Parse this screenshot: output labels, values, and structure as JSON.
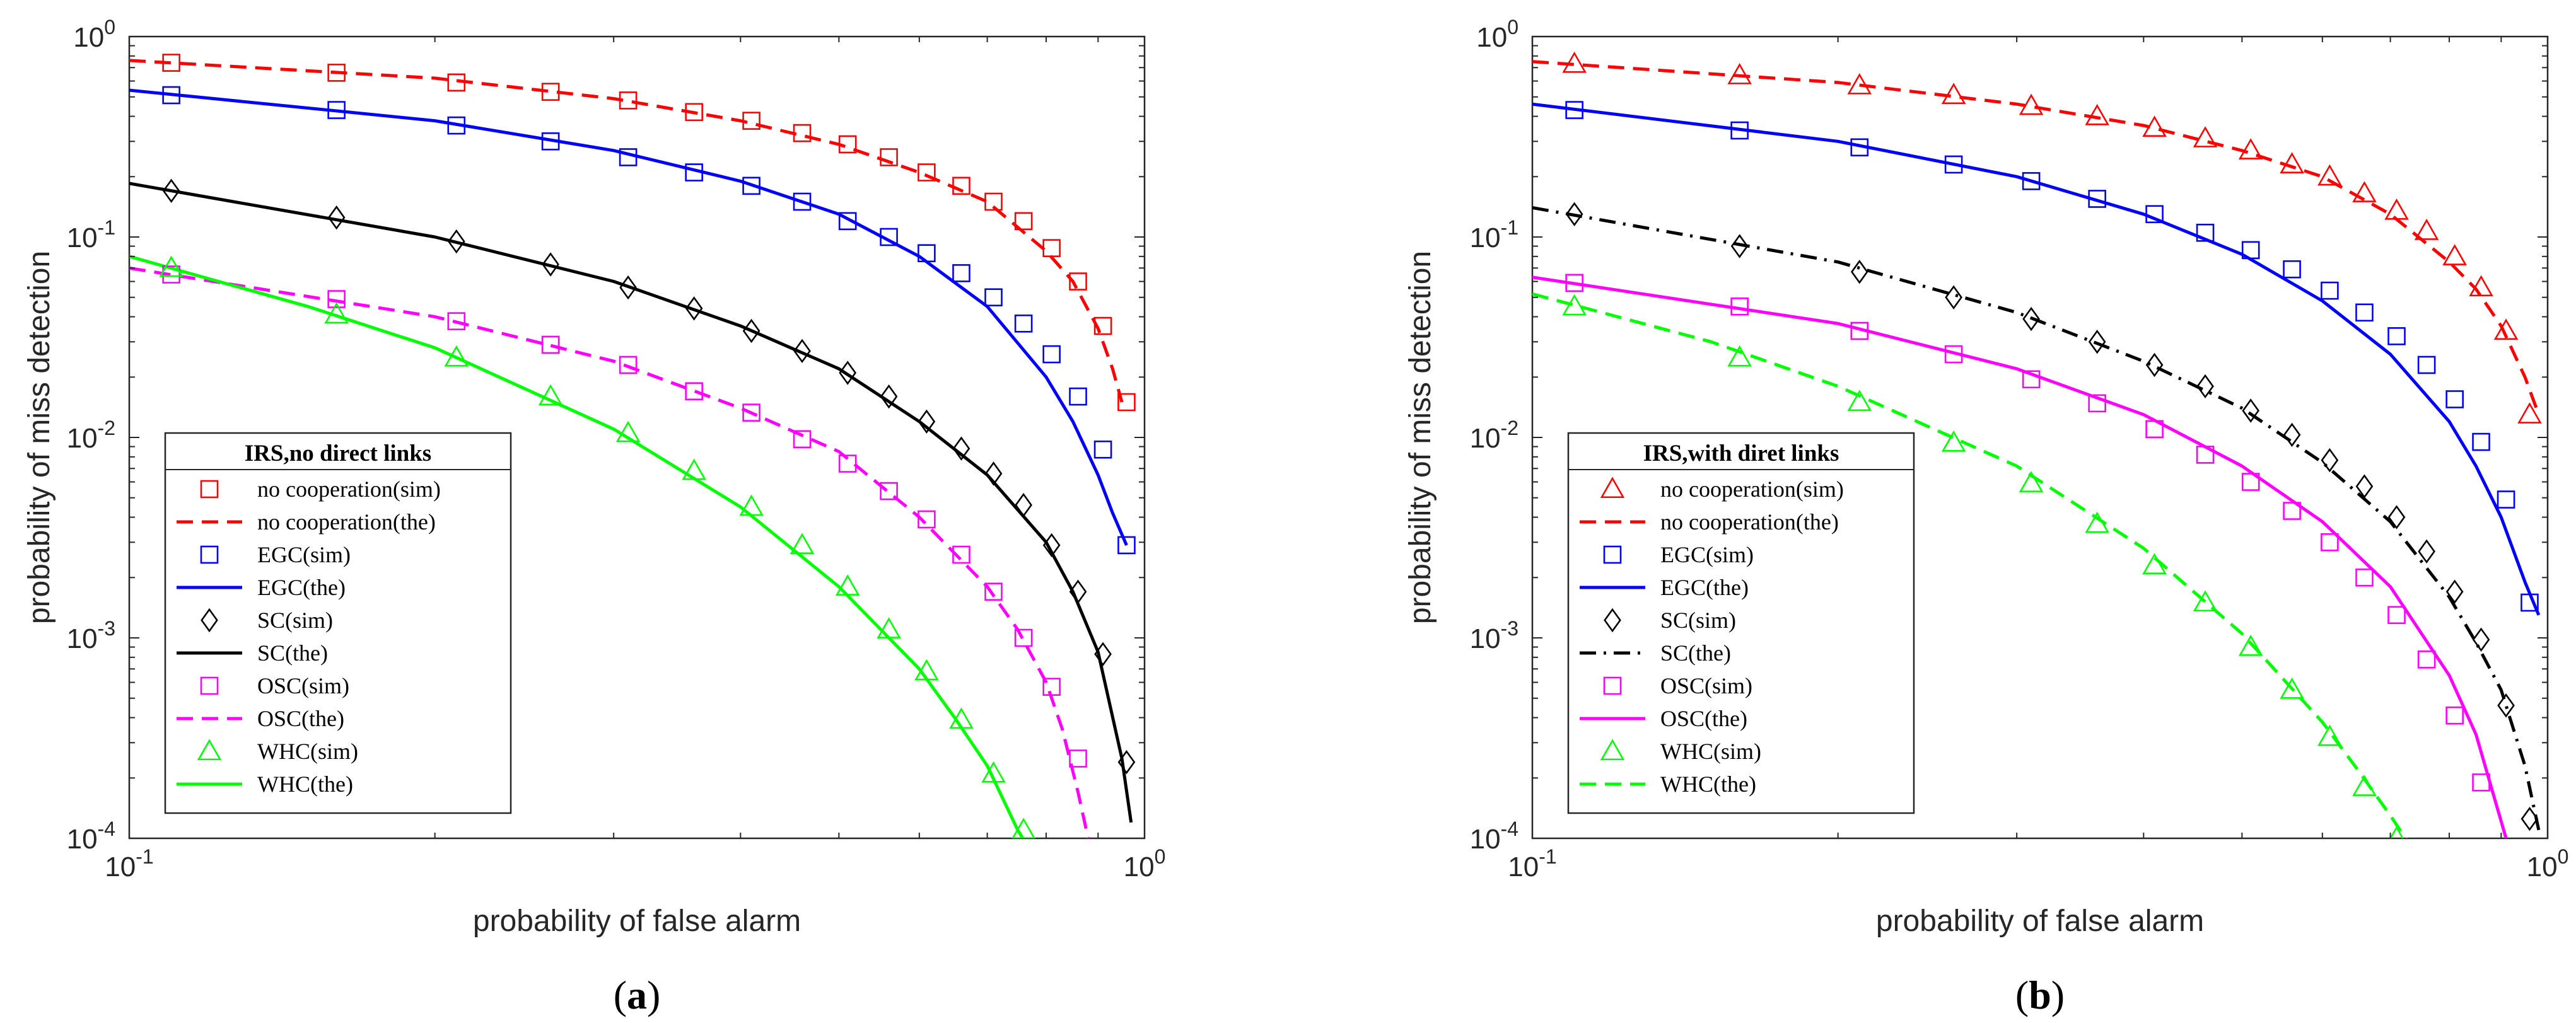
{
  "figure": {
    "panels": [
      {
        "caption_letter": "a"
      },
      {
        "caption_letter": "b"
      }
    ]
  },
  "chart_data": [
    {
      "type": "line",
      "panel": "a",
      "xlabel": "probability of false alarm",
      "ylabel": "probability of miss detection",
      "xscale": "log",
      "yscale": "log",
      "xlim": [
        0.1,
        1.0
      ],
      "ylim": [
        0.0001,
        1.0
      ],
      "xticks": [
        {
          "value": 0.1,
          "base": "10",
          "exp": "-1"
        },
        {
          "value": 1.0,
          "base": "10",
          "exp": "0"
        }
      ],
      "yticks": [
        {
          "value": 0.0001,
          "base": "10",
          "exp": "-4"
        },
        {
          "value": 0.001,
          "base": "10",
          "exp": "-3"
        },
        {
          "value": 0.01,
          "base": "10",
          "exp": "-2"
        },
        {
          "value": 0.1,
          "base": "10",
          "exp": "-1"
        },
        {
          "value": 1.0,
          "base": "10",
          "exp": "0"
        }
      ],
      "grid": false,
      "legend": {
        "title": "IRS,no direct links",
        "placement": "bottom-left",
        "entries": [
          {
            "label": "no cooperation(sim)",
            "series": 0,
            "kind": "sim"
          },
          {
            "label": "no cooperation(the)",
            "series": 0,
            "kind": "the"
          },
          {
            "label": "EGC(sim)",
            "series": 1,
            "kind": "sim"
          },
          {
            "label": "EGC(the)",
            "series": 1,
            "kind": "the"
          },
          {
            "label": "SC(sim)",
            "series": 2,
            "kind": "sim"
          },
          {
            "label": "SC(the)",
            "series": 2,
            "kind": "the"
          },
          {
            "label": "OSC(sim)",
            "series": 3,
            "kind": "sim"
          },
          {
            "label": "OSC(the)",
            "series": 3,
            "kind": "the"
          },
          {
            "label": "WHC(sim)",
            "series": 4,
            "kind": "sim"
          },
          {
            "label": "WHC(the)",
            "series": 4,
            "kind": "the"
          }
        ]
      },
      "series": [
        {
          "color": "#ff0000",
          "line": "dashed",
          "marker": "square",
          "curve_x": [
            0.1,
            0.2,
            0.3,
            0.4,
            0.5,
            0.6,
            0.7,
            0.8,
            0.85,
            0.9,
            0.93,
            0.95
          ],
          "curve_y": [
            0.76,
            0.62,
            0.49,
            0.38,
            0.29,
            0.21,
            0.15,
            0.085,
            0.06,
            0.035,
            0.022,
            0.015
          ],
          "x": [
            0.11,
            0.16,
            0.21,
            0.26,
            0.31,
            0.36,
            0.41,
            0.46,
            0.51,
            0.56,
            0.61,
            0.66,
            0.71,
            0.76,
            0.81,
            0.86,
            0.91,
            0.96
          ],
          "y": [
            0.74,
            0.66,
            0.59,
            0.53,
            0.48,
            0.42,
            0.38,
            0.33,
            0.29,
            0.25,
            0.21,
            0.18,
            0.15,
            0.12,
            0.088,
            0.06,
            0.036,
            0.015
          ]
        },
        {
          "color": "#0000ff",
          "line": "solid",
          "marker": "square",
          "curve_x": [
            0.1,
            0.2,
            0.3,
            0.4,
            0.5,
            0.6,
            0.7,
            0.8,
            0.85,
            0.9,
            0.93,
            0.96
          ],
          "curve_y": [
            0.54,
            0.38,
            0.27,
            0.19,
            0.13,
            0.08,
            0.045,
            0.02,
            0.012,
            0.0065,
            0.0042,
            0.0029
          ],
          "x": [
            0.11,
            0.16,
            0.21,
            0.26,
            0.31,
            0.36,
            0.41,
            0.46,
            0.51,
            0.56,
            0.61,
            0.66,
            0.71,
            0.76,
            0.81,
            0.86,
            0.91,
            0.96
          ],
          "y": [
            0.51,
            0.43,
            0.36,
            0.3,
            0.25,
            0.21,
            0.18,
            0.15,
            0.12,
            0.1,
            0.083,
            0.066,
            0.05,
            0.037,
            0.026,
            0.016,
            0.0087,
            0.0029
          ]
        },
        {
          "color": "#000000",
          "line": "solid",
          "marker": "diamond",
          "curve_x": [
            0.1,
            0.2,
            0.3,
            0.4,
            0.5,
            0.6,
            0.7,
            0.8,
            0.85,
            0.9,
            0.95,
            0.97
          ],
          "curve_y": [
            0.185,
            0.1,
            0.06,
            0.036,
            0.022,
            0.012,
            0.0065,
            0.003,
            0.0017,
            0.00085,
            0.00025,
            0.00012
          ],
          "x": [
            0.11,
            0.16,
            0.21,
            0.26,
            0.31,
            0.36,
            0.41,
            0.46,
            0.51,
            0.56,
            0.61,
            0.66,
            0.71,
            0.76,
            0.81,
            0.86,
            0.91,
            0.96
          ],
          "y": [
            0.17,
            0.125,
            0.095,
            0.073,
            0.056,
            0.044,
            0.034,
            0.027,
            0.021,
            0.016,
            0.012,
            0.0088,
            0.0066,
            0.0046,
            0.0029,
            0.0017,
            0.00083,
            0.00024
          ]
        },
        {
          "color": "#ff00ff",
          "line": "dashed",
          "marker": "square",
          "curve_x": [
            0.1,
            0.2,
            0.3,
            0.4,
            0.5,
            0.6,
            0.7,
            0.75,
            0.8,
            0.83,
            0.86,
            0.88
          ],
          "curve_y": [
            0.07,
            0.04,
            0.024,
            0.014,
            0.0085,
            0.004,
            0.0018,
            0.0011,
            0.0006,
            0.00035,
            0.00017,
            0.0001
          ],
          "x": [
            0.11,
            0.16,
            0.21,
            0.26,
            0.31,
            0.36,
            0.41,
            0.46,
            0.51,
            0.56,
            0.61,
            0.66,
            0.71,
            0.76,
            0.81,
            0.86
          ],
          "y": [
            0.065,
            0.049,
            0.038,
            0.029,
            0.023,
            0.017,
            0.0133,
            0.0098,
            0.0074,
            0.0054,
            0.0039,
            0.0026,
            0.0017,
            0.001,
            0.00057,
            0.00025
          ]
        },
        {
          "color": "#00ff00",
          "line": "solid",
          "marker": "triangle",
          "curve_x": [
            0.1,
            0.15,
            0.2,
            0.3,
            0.4,
            0.5,
            0.6,
            0.65,
            0.7,
            0.75,
            0.78
          ],
          "curve_y": [
            0.08,
            0.045,
            0.028,
            0.011,
            0.0045,
            0.0018,
            0.0007,
            0.0004,
            0.00023,
            0.00011,
            8e-05
          ],
          "x": [
            0.11,
            0.16,
            0.21,
            0.26,
            0.31,
            0.36,
            0.41,
            0.46,
            0.51,
            0.56,
            0.61,
            0.66,
            0.71,
            0.76
          ],
          "y": [
            0.07,
            0.041,
            0.025,
            0.016,
            0.0105,
            0.0068,
            0.0045,
            0.0029,
            0.0018,
            0.0011,
            0.00068,
            0.00039,
            0.00021,
            0.00011
          ]
        }
      ]
    },
    {
      "type": "line",
      "panel": "b",
      "xlabel": "probability of false alarm",
      "ylabel": "probability of miss detection",
      "xscale": "log",
      "yscale": "log",
      "xlim": [
        0.1,
        1.0
      ],
      "ylim": [
        0.0001,
        1.0
      ],
      "xticks": [
        {
          "value": 0.1,
          "base": "10",
          "exp": "-1"
        },
        {
          "value": 1.0,
          "base": "10",
          "exp": "0"
        }
      ],
      "yticks": [
        {
          "value": 0.0001,
          "base": "10",
          "exp": "-4"
        },
        {
          "value": 0.001,
          "base": "10",
          "exp": "-3"
        },
        {
          "value": 0.01,
          "base": "10",
          "exp": "-2"
        },
        {
          "value": 0.1,
          "base": "10",
          "exp": "-1"
        },
        {
          "value": 1.0,
          "base": "10",
          "exp": "0"
        }
      ],
      "grid": false,
      "legend": {
        "title": "IRS,with diret links",
        "placement": "bottom-left",
        "entries": [
          {
            "label": "no cooperation(sim)",
            "series": 0,
            "kind": "sim"
          },
          {
            "label": "no cooperation(the)",
            "series": 0,
            "kind": "the"
          },
          {
            "label": "EGC(sim)",
            "series": 1,
            "kind": "sim"
          },
          {
            "label": "EGC(the)",
            "series": 1,
            "kind": "the"
          },
          {
            "label": "SC(sim)",
            "series": 2,
            "kind": "sim"
          },
          {
            "label": "SC(the)",
            "series": 2,
            "kind": "the"
          },
          {
            "label": "OSC(sim)",
            "series": 3,
            "kind": "sim"
          },
          {
            "label": "OSC(the)",
            "series": 3,
            "kind": "the"
          },
          {
            "label": "WHC(sim)",
            "series": 4,
            "kind": "sim"
          },
          {
            "label": "WHC(the)",
            "series": 4,
            "kind": "the"
          }
        ]
      },
      "series": [
        {
          "color": "#ff0000",
          "line": "dashed",
          "marker": "triangle",
          "curve_x": [
            0.1,
            0.2,
            0.3,
            0.4,
            0.5,
            0.6,
            0.7,
            0.8,
            0.85,
            0.9,
            0.95,
            0.98
          ],
          "curve_y": [
            0.75,
            0.59,
            0.46,
            0.36,
            0.27,
            0.2,
            0.13,
            0.075,
            0.055,
            0.036,
            0.02,
            0.013
          ],
          "x": [
            0.11,
            0.16,
            0.21,
            0.26,
            0.31,
            0.36,
            0.41,
            0.46,
            0.51,
            0.56,
            0.61,
            0.66,
            0.71,
            0.76,
            0.81,
            0.86,
            0.91,
            0.96
          ],
          "y": [
            0.73,
            0.64,
            0.57,
            0.51,
            0.45,
            0.4,
            0.35,
            0.31,
            0.27,
            0.23,
            0.2,
            0.165,
            0.135,
            0.107,
            0.08,
            0.056,
            0.034,
            0.013
          ]
        },
        {
          "color": "#0000ff",
          "line": "solid",
          "marker": "square",
          "curve_x": [
            0.1,
            0.2,
            0.3,
            0.4,
            0.5,
            0.6,
            0.7,
            0.8,
            0.85,
            0.9,
            0.95,
            0.98
          ],
          "curve_y": [
            0.46,
            0.3,
            0.2,
            0.13,
            0.082,
            0.048,
            0.026,
            0.012,
            0.0072,
            0.004,
            0.0019,
            0.0013
          ],
          "x": [
            0.11,
            0.16,
            0.21,
            0.26,
            0.31,
            0.36,
            0.41,
            0.46,
            0.51,
            0.56,
            0.61,
            0.66,
            0.71,
            0.76,
            0.81,
            0.86,
            0.91,
            0.96
          ],
          "y": [
            0.43,
            0.34,
            0.28,
            0.23,
            0.19,
            0.155,
            0.13,
            0.105,
            0.086,
            0.069,
            0.054,
            0.042,
            0.032,
            0.023,
            0.0155,
            0.0095,
            0.0049,
            0.0015
          ]
        },
        {
          "color": "#000000",
          "line": "dashdot",
          "marker": "diamond",
          "curve_x": [
            0.1,
            0.2,
            0.3,
            0.4,
            0.5,
            0.6,
            0.7,
            0.8,
            0.85,
            0.9,
            0.95,
            0.98
          ],
          "curve_y": [
            0.14,
            0.075,
            0.042,
            0.024,
            0.014,
            0.0075,
            0.0038,
            0.0016,
            0.00095,
            0.00055,
            0.00023,
            0.00011
          ],
          "x": [
            0.11,
            0.16,
            0.21,
            0.26,
            0.31,
            0.36,
            0.41,
            0.46,
            0.51,
            0.56,
            0.61,
            0.66,
            0.71,
            0.76,
            0.81,
            0.86,
            0.91,
            0.96
          ],
          "y": [
            0.13,
            0.09,
            0.067,
            0.05,
            0.039,
            0.03,
            0.023,
            0.018,
            0.0136,
            0.0103,
            0.0077,
            0.0057,
            0.004,
            0.0027,
            0.0017,
            0.00098,
            0.00046,
            0.000125
          ]
        },
        {
          "color": "#ff00ff",
          "line": "solid",
          "marker": "square",
          "curve_x": [
            0.1,
            0.2,
            0.3,
            0.4,
            0.5,
            0.6,
            0.7,
            0.8,
            0.85,
            0.88,
            0.91
          ],
          "curve_y": [
            0.063,
            0.037,
            0.022,
            0.013,
            0.0072,
            0.0038,
            0.0018,
            0.00065,
            0.00033,
            0.00018,
            0.0001
          ],
          "x": [
            0.11,
            0.16,
            0.21,
            0.26,
            0.31,
            0.36,
            0.41,
            0.46,
            0.51,
            0.56,
            0.61,
            0.66,
            0.71,
            0.76,
            0.81,
            0.86,
            0.91
          ],
          "y": [
            0.059,
            0.045,
            0.034,
            0.026,
            0.0195,
            0.0148,
            0.011,
            0.0082,
            0.006,
            0.0043,
            0.003,
            0.002,
            0.0013,
            0.00078,
            0.00041,
            0.00019,
            9e-05
          ]
        },
        {
          "color": "#00ff00",
          "line": "dashed",
          "marker": "triangle",
          "curve_x": [
            0.1,
            0.15,
            0.2,
            0.3,
            0.4,
            0.5,
            0.6,
            0.65,
            0.7,
            0.74,
            0.77
          ],
          "curve_y": [
            0.052,
            0.03,
            0.018,
            0.0072,
            0.0028,
            0.00105,
            0.00038,
            0.00022,
            0.00013,
            8.5e-05,
            7e-05
          ],
          "x": [
            0.11,
            0.16,
            0.21,
            0.26,
            0.31,
            0.36,
            0.41,
            0.46,
            0.51,
            0.56,
            0.61,
            0.66,
            0.71
          ],
          "y": [
            0.045,
            0.025,
            0.015,
            0.0094,
            0.0059,
            0.0037,
            0.0023,
            0.0015,
            0.0009,
            0.00055,
            0.00032,
            0.00018,
            0.0001
          ]
        }
      ]
    }
  ]
}
